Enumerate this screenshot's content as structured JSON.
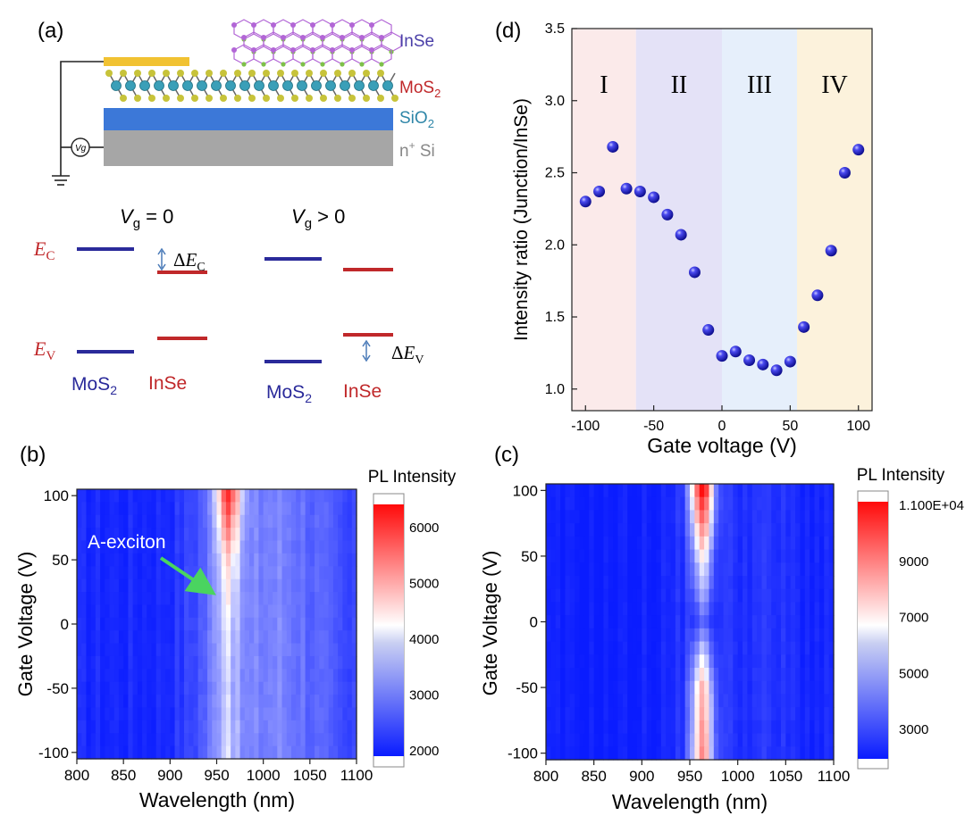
{
  "panel_labels": {
    "a": "(a)",
    "b": "(b)",
    "c": "(c)",
    "d": "(d)"
  },
  "schematic": {
    "layers": [
      "InSe",
      "MoS2",
      "SiO2",
      "n+ Si"
    ],
    "meter_symbol": "Vg",
    "colors": {
      "electrode": "#f1c232",
      "sio2": "#3c78d8",
      "si": "#a6a6a6",
      "inse_atom": "#b266d6",
      "mos2_atom": "#3a9fb8",
      "s_atom": "#c7c33a"
    }
  },
  "band_diagram": {
    "condition_left": "Vg = 0",
    "condition_right": "Vg > 0",
    "ec_label": "EC",
    "ev_label": "EV",
    "dec_label": "ΔEC",
    "dev_label": "ΔEV",
    "material_left": "MoS2",
    "material_right": "InSe",
    "colors": {
      "mos2": "#2a2a9a",
      "inse": "#c0282a",
      "axis_label": "#c0282a",
      "arrow": "#4a7ab8"
    }
  },
  "heatmap_b": {
    "ylabel": "Gate Voltage (V)",
    "xlabel": "Wavelength (nm)",
    "x_ticks": [
      "800",
      "850",
      "900",
      "950",
      "1000",
      "1050",
      "1100"
    ],
    "y_ticks": [
      "100",
      "50",
      "0",
      "-50",
      "-100"
    ],
    "annotation": "A-exciton",
    "colorbar_title": "PL Intensity",
    "colorbar_ticks": [
      "6000",
      "5000",
      "4000",
      "3000",
      "2000"
    ]
  },
  "heatmap_c": {
    "ylabel": "Gate Voltage (V)",
    "xlabel": "Wavelength (nm)",
    "x_ticks": [
      "800",
      "850",
      "900",
      "950",
      "1000",
      "1050",
      "1100"
    ],
    "y_ticks": [
      "100",
      "50",
      "0",
      "-50",
      "-100"
    ],
    "colorbar_title": "PL Intensity",
    "colorbar_ticks": [
      "1.100E+04",
      "9000",
      "7000",
      "5000",
      "3000"
    ]
  },
  "chart_data": [
    {
      "type": "scatter",
      "panel": "d",
      "xlabel": "Gate voltage (V)",
      "ylabel": "Intensity ratio (Junction/InSe)",
      "xlim": [
        -110,
        110
      ],
      "ylim": [
        0.85,
        3.5
      ],
      "x_ticks": [
        "-100",
        "-50",
        "0",
        "50",
        "100"
      ],
      "y_ticks": [
        "1.0",
        "1.5",
        "2.0",
        "2.5",
        "3.0",
        "3.5"
      ],
      "regions": [
        {
          "label": "I",
          "x_range": [
            -110,
            -63
          ],
          "color": "#fbeaea"
        },
        {
          "label": "II",
          "x_range": [
            -63,
            0
          ],
          "color": "#e4e2f7"
        },
        {
          "label": "III",
          "x_range": [
            0,
            55
          ],
          "color": "#e6effb"
        },
        {
          "label": "IV",
          "x_range": [
            55,
            110
          ],
          "color": "#fcf2dc"
        }
      ],
      "marker_color": "#1f1fd0",
      "x": [
        -100,
        -90,
        -80,
        -70,
        -60,
        -50,
        -40,
        -30,
        -20,
        -10,
        0,
        10,
        20,
        30,
        40,
        50,
        60,
        70,
        80,
        90,
        100
      ],
      "y": [
        2.3,
        2.37,
        2.68,
        2.39,
        2.37,
        2.33,
        2.21,
        2.07,
        1.81,
        1.41,
        1.23,
        1.26,
        1.2,
        1.17,
        1.13,
        1.19,
        1.43,
        1.65,
        1.96,
        2.5,
        2.66
      ]
    },
    {
      "type": "heatmap",
      "panel": "b",
      "xlabel": "Wavelength (nm)",
      "ylabel": "Gate Voltage (V)",
      "xlim": [
        800,
        1100
      ],
      "ylim": [
        -105,
        105
      ],
      "colorbar_range": [
        1800,
        6500
      ],
      "peak_wavelength": 963,
      "peak_intensity_by_gate": {
        "x": [
          100,
          50,
          0,
          -50,
          -100
        ],
        "y": [
          6400,
          4800,
          4300,
          4100,
          4200
        ]
      },
      "background_intensity": 2100,
      "shoulder_intensity": 3300
    },
    {
      "type": "heatmap",
      "panel": "c",
      "xlabel": "Wavelength (nm)",
      "ylabel": "Gate Voltage (V)",
      "xlim": [
        800,
        1100
      ],
      "ylim": [
        -105,
        105
      ],
      "colorbar_range": [
        1800,
        11000
      ],
      "peak_wavelength": 963,
      "peak_intensity_by_gate": {
        "x": [
          100,
          50,
          0,
          -50,
          -100
        ],
        "y": [
          10800,
          6500,
          3800,
          7600,
          8300
        ]
      },
      "background_intensity": 2000,
      "shoulder_intensity": 2800
    }
  ]
}
